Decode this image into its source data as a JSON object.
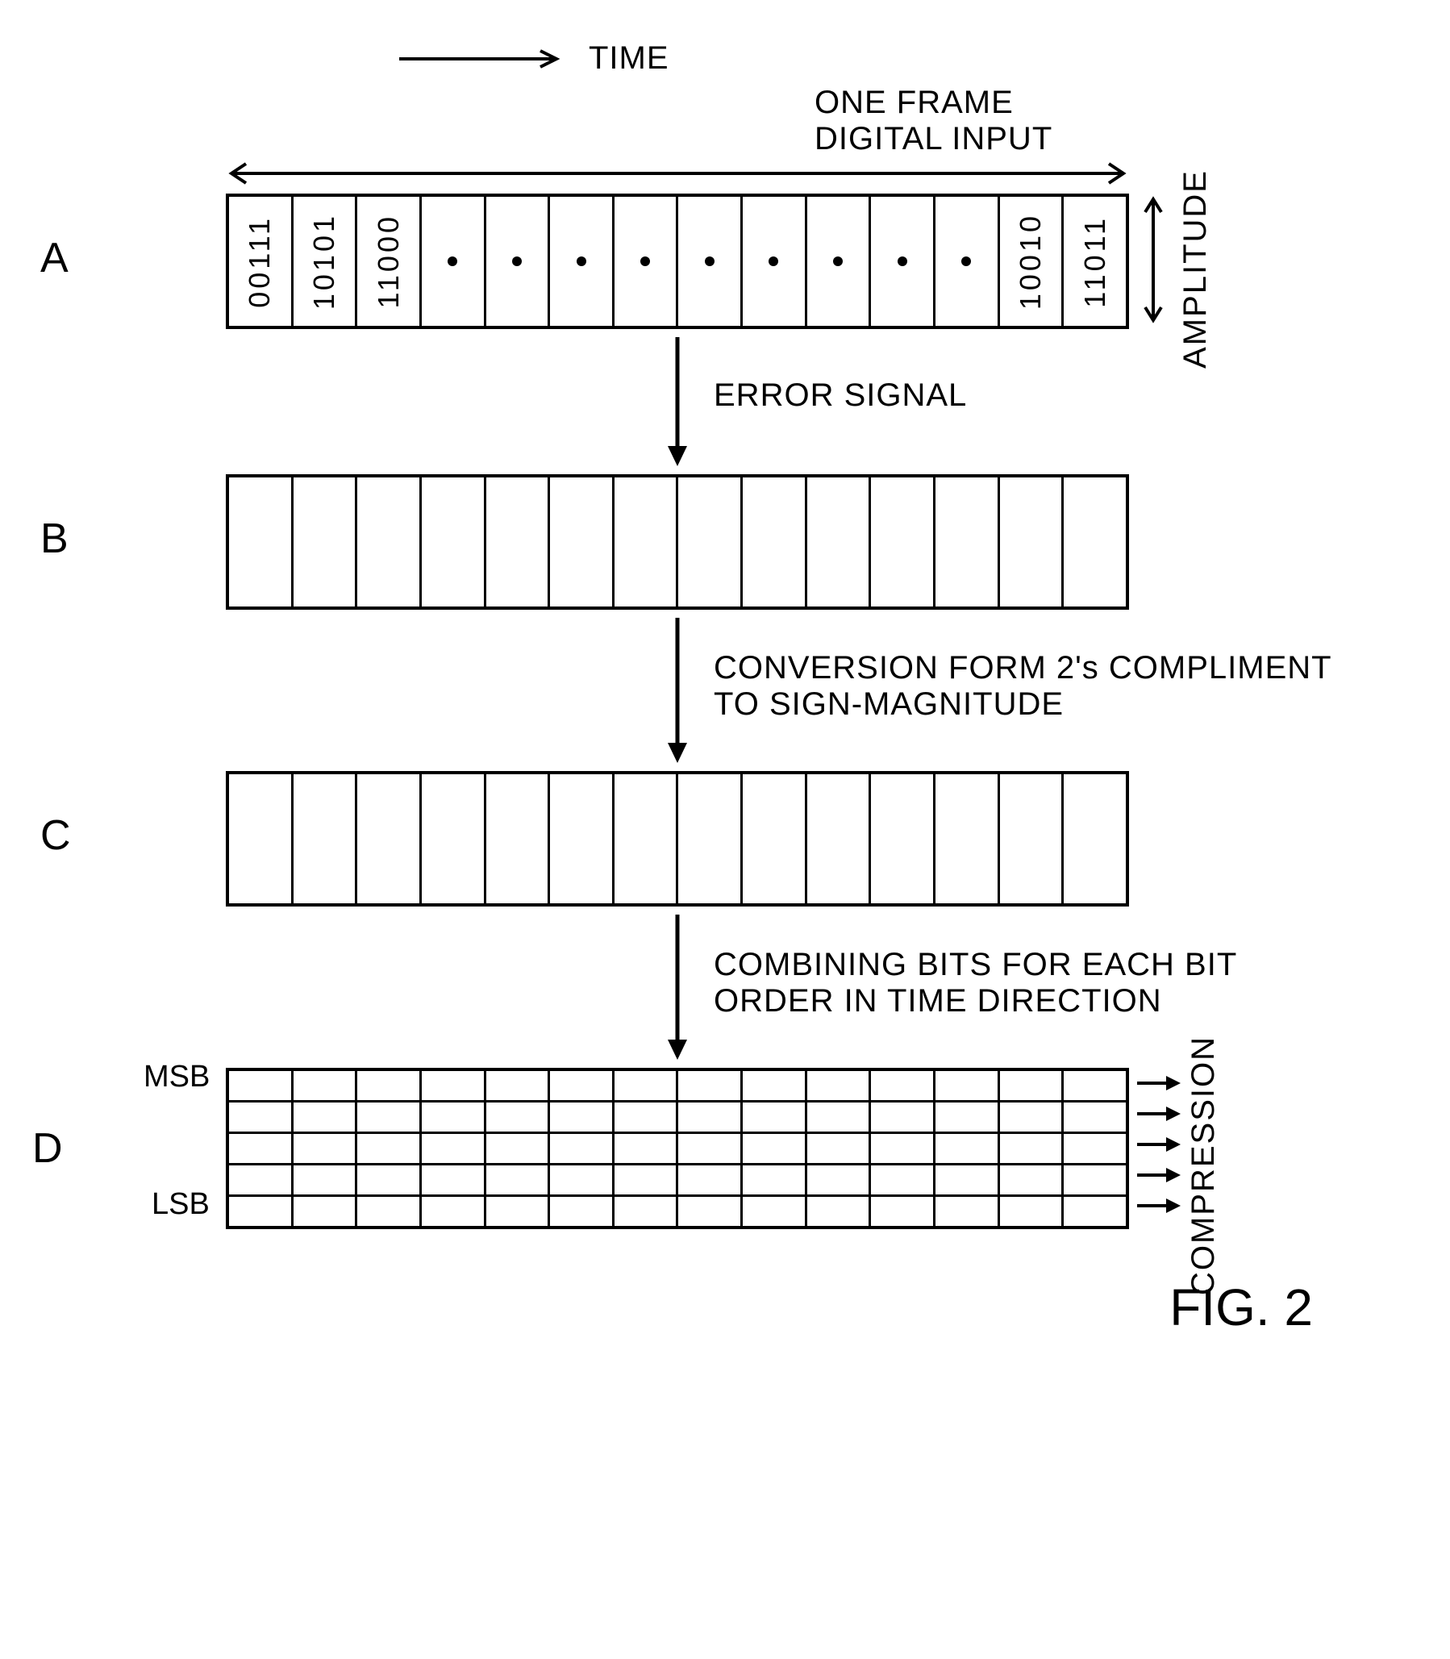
{
  "time_label": "TIME",
  "frame_label_line1": "ONE FRAME",
  "frame_label_line2": "DIGITAL INPUT",
  "amplitude_label": "AMPLITUDE",
  "rowA": {
    "letter": "A",
    "cells": [
      "00111",
      "10101",
      "11000",
      "·",
      "·",
      "·",
      "·",
      "·",
      "·",
      "·",
      "·",
      "·",
      "10010",
      "11011"
    ]
  },
  "arrow1_label": "ERROR SIGNAL",
  "rowB": {
    "letter": "B",
    "cell_count": 14
  },
  "arrow2_label_line1": "CONVERSION FORM  2's COMPLIMENT",
  "arrow2_label_line2": "TO SIGN-MAGNITUDE",
  "rowC": {
    "letter": "C",
    "cell_count": 14
  },
  "arrow3_label_line1": "COMBINING BITS FOR EACH BIT",
  "arrow3_label_line2": "ORDER IN TIME DIRECTION",
  "rowD": {
    "letter": "D",
    "msb_label": "MSB",
    "lsb_label": "LSB",
    "rows": 5,
    "cols": 14
  },
  "compression_label": "COMPRESSION",
  "figure_label": "FIG. 2",
  "colors": {
    "stroke": "#000000",
    "background": "#ffffff"
  }
}
